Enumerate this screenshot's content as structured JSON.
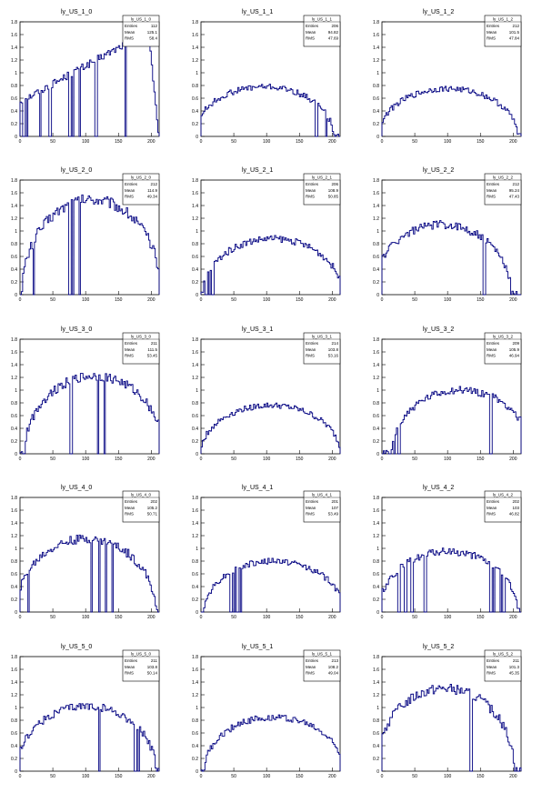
{
  "figure": {
    "colors": {
      "line": "#000080",
      "frame": "#000000",
      "background": "#ffffff"
    }
  },
  "stats_labels": {
    "entries": "Entries",
    "mean": "Mean",
    "rms": "RMS"
  },
  "chart_data": [
    {
      "type": "histogram",
      "title": "ly_US_1_0",
      "stats": {
        "name": "ly_US_1_0",
        "entries": "112",
        "mean": "125.1",
        "rms": "58.4"
      },
      "xlim": [
        0,
        212
      ],
      "ylim": [
        0,
        1.8
      ],
      "xticks": [
        0,
        50,
        100,
        150,
        200
      ],
      "yticks": [
        0,
        0.2,
        0.4,
        0.6,
        0.8,
        1,
        1.2,
        1.4,
        1.6,
        1.8
      ],
      "gaps": [
        5,
        10,
        30,
        45,
        75,
        80,
        90,
        115,
        160
      ],
      "shape": {
        "type": "rise",
        "a": 0.55,
        "b": 1.65,
        "x0": 195
      },
      "y": []
    },
    {
      "type": "histogram",
      "title": "ly_US_1_1",
      "stats": {
        "name": "ly_US_1_1",
        "entries": "206",
        "mean": "94.82",
        "rms": "47.69"
      },
      "xlim": [
        0,
        212
      ],
      "ylim": [
        0,
        1.8
      ],
      "xticks": [
        0,
        50,
        100,
        150,
        200
      ],
      "yticks": [
        0,
        0.2,
        0.4,
        0.6,
        0.8,
        1,
        1.2,
        1.4,
        1.6,
        1.8
      ],
      "gaps": [
        175,
        190
      ],
      "shape": {
        "type": "dome",
        "h": 0.78,
        "c": 95
      },
      "y": []
    },
    {
      "type": "histogram",
      "title": "ly_US_1_2",
      "stats": {
        "name": "ly_US_1_2",
        "entries": "212",
        "mean": "101.5",
        "rms": "47.84"
      },
      "xlim": [
        0,
        212
      ],
      "ylim": [
        0,
        1.8
      ],
      "xticks": [
        0,
        50,
        100,
        150,
        200
      ],
      "yticks": [
        0,
        0.2,
        0.4,
        0.6,
        0.8,
        1,
        1.2,
        1.4,
        1.6,
        1.8
      ],
      "gaps": [],
      "shape": {
        "type": "dome",
        "h": 0.75,
        "c": 100
      },
      "y": []
    },
    {
      "type": "histogram",
      "title": "ly_US_2_0",
      "stats": {
        "name": "ly_US_2_0",
        "entries": "212",
        "mean": "114.9",
        "rms": "49.34"
      },
      "xlim": [
        0,
        212
      ],
      "ylim": [
        0,
        1.8
      ],
      "xticks": [
        0,
        50,
        100,
        150,
        200
      ],
      "yticks": [
        0,
        0.2,
        0.4,
        0.6,
        0.8,
        1,
        1.2,
        1.4,
        1.6,
        1.8
      ],
      "gaps": [
        20,
        75,
        80,
        90
      ],
      "shape": {
        "type": "dome",
        "h": 1.5,
        "c": 108
      },
      "y": []
    },
    {
      "type": "histogram",
      "title": "ly_US_2_1",
      "stats": {
        "name": "ly_US_2_1",
        "entries": "206",
        "mean": "108.9",
        "rms": "50.85"
      },
      "xlim": [
        0,
        212
      ],
      "ylim": [
        0,
        1.8
      ],
      "xticks": [
        0,
        50,
        100,
        150,
        200
      ],
      "yticks": [
        0,
        0.2,
        0.4,
        0.6,
        0.8,
        1,
        1.2,
        1.4,
        1.6,
        1.8
      ],
      "gaps": [
        7,
        12,
        17
      ],
      "shape": {
        "type": "dome",
        "h": 0.88,
        "c": 108
      },
      "y": []
    },
    {
      "type": "histogram",
      "title": "ly_US_2_2",
      "stats": {
        "name": "ly_US_2_2",
        "entries": "212",
        "mean": "95.24",
        "rms": "47.43"
      },
      "xlim": [
        0,
        212
      ],
      "ylim": [
        0,
        1.8
      ],
      "xticks": [
        0,
        50,
        100,
        150,
        200
      ],
      "yticks": [
        0,
        0.2,
        0.4,
        0.6,
        0.8,
        1,
        1.2,
        1.4,
        1.6,
        1.8
      ],
      "gaps": [
        155
      ],
      "shape": {
        "type": "dome",
        "h": 1.1,
        "c": 90
      },
      "y": []
    },
    {
      "type": "histogram",
      "title": "ly_US_3_0",
      "stats": {
        "name": "ly_US_3_0",
        "entries": "211",
        "mean": "111.5",
        "rms": "53.45"
      },
      "xlim": [
        0,
        212
      ],
      "ylim": [
        0,
        1.8
      ],
      "xticks": [
        0,
        50,
        100,
        150,
        200
      ],
      "yticks": [
        0,
        0.2,
        0.4,
        0.6,
        0.8,
        1,
        1.2,
        1.4,
        1.6,
        1.8
      ],
      "gaps": [
        77,
        118,
        128
      ],
      "shape": {
        "type": "dome",
        "h": 1.22,
        "c": 112
      },
      "y": []
    },
    {
      "type": "histogram",
      "title": "ly_US_3_1",
      "stats": {
        "name": "ly_US_3_1",
        "entries": "214",
        "mean": "103.8",
        "rms": "53.16"
      },
      "xlim": [
        0,
        212
      ],
      "ylim": [
        0,
        1.8
      ],
      "xticks": [
        0,
        50,
        100,
        150,
        200
      ],
      "yticks": [
        0,
        0.2,
        0.4,
        0.6,
        0.8,
        1,
        1.2,
        1.4,
        1.6,
        1.8
      ],
      "gaps": [],
      "shape": {
        "type": "dome",
        "h": 0.76,
        "c": 105
      },
      "y": []
    },
    {
      "type": "histogram",
      "title": "ly_US_3_2",
      "stats": {
        "name": "ly_US_3_2",
        "entries": "209",
        "mean": "105.9",
        "rms": "46.94"
      },
      "xlim": [
        0,
        212
      ],
      "ylim": [
        0,
        1.8
      ],
      "xticks": [
        0,
        50,
        100,
        150,
        200
      ],
      "yticks": [
        0,
        0.2,
        0.4,
        0.6,
        0.8,
        1,
        1.2,
        1.4,
        1.6,
        1.8
      ],
      "gaps": [
        12,
        18,
        25,
        165
      ],
      "shape": {
        "type": "dome",
        "h": 1.0,
        "c": 120
      },
      "y": []
    },
    {
      "type": "histogram",
      "title": "ly_US_4_0",
      "stats": {
        "name": "ly_US_4_0",
        "entries": "202",
        "mean": "105.2",
        "rms": "50.71"
      },
      "xlim": [
        0,
        212
      ],
      "ylim": [
        0,
        1.8
      ],
      "xticks": [
        0,
        50,
        100,
        150,
        200
      ],
      "yticks": [
        0,
        0.2,
        0.4,
        0.6,
        0.8,
        1,
        1.2,
        1.4,
        1.6,
        1.8
      ],
      "gaps": [
        12,
        108,
        120,
        130,
        140
      ],
      "shape": {
        "type": "dome",
        "h": 1.15,
        "c": 100
      },
      "y": []
    },
    {
      "type": "histogram",
      "title": "ly_US_4_1",
      "stats": {
        "name": "ly_US_4_1",
        "entries": "201",
        "mean": "107",
        "rms": "53.49"
      },
      "xlim": [
        0,
        212
      ],
      "ylim": [
        0,
        1.8
      ],
      "xticks": [
        0,
        50,
        100,
        150,
        200
      ],
      "yticks": [
        0,
        0.2,
        0.4,
        0.6,
        0.8,
        1,
        1.2,
        1.4,
        1.6,
        1.8
      ],
      "gaps": [
        45,
        50,
        55,
        60
      ],
      "shape": {
        "type": "dome",
        "h": 0.8,
        "c": 110
      },
      "y": []
    },
    {
      "type": "histogram",
      "title": "ly_US_4_2",
      "stats": {
        "name": "ly_US_4_2",
        "entries": "202",
        "mean": "103",
        "rms": "46.82"
      },
      "xlim": [
        0,
        212
      ],
      "ylim": [
        0,
        1.8
      ],
      "xticks": [
        0,
        50,
        100,
        150,
        200
      ],
      "yticks": [
        0,
        0.2,
        0.4,
        0.6,
        0.8,
        1,
        1.2,
        1.4,
        1.6,
        1.8
      ],
      "gaps": [
        25,
        35,
        45,
        65,
        165,
        170,
        180,
        185
      ],
      "shape": {
        "type": "dome",
        "h": 0.95,
        "c": 100
      },
      "y": []
    },
    {
      "type": "histogram",
      "title": "ly_US_5_0",
      "stats": {
        "name": "ly_US_5_0",
        "entries": "211",
        "mean": "103.8",
        "rms": "50.14"
      },
      "xlim": [
        0,
        212
      ],
      "ylim": [
        0,
        1.8
      ],
      "xticks": [
        0,
        50,
        100,
        150,
        200
      ],
      "yticks": [
        0,
        0.2,
        0.4,
        0.6,
        0.8,
        1,
        1.2,
        1.4,
        1.6,
        1.8
      ],
      "gaps": [
        120,
        175,
        180
      ],
      "shape": {
        "type": "dome",
        "h": 1.02,
        "c": 100
      },
      "y": []
    },
    {
      "type": "histogram",
      "title": "ly_US_5_1",
      "stats": {
        "name": "ly_US_5_1",
        "entries": "213",
        "mean": "108.2",
        "rms": "49.04"
      },
      "xlim": [
        0,
        212
      ],
      "ylim": [
        0,
        1.8
      ],
      "xticks": [
        0,
        50,
        100,
        150,
        200
      ],
      "yticks": [
        0,
        0.2,
        0.4,
        0.6,
        0.8,
        1,
        1.2,
        1.4,
        1.6,
        1.8
      ],
      "gaps": [],
      "shape": {
        "type": "dome",
        "h": 0.85,
        "c": 110
      },
      "y": []
    },
    {
      "type": "histogram",
      "title": "ly_US_5_2",
      "stats": {
        "name": "ly_US_5_2",
        "entries": "211",
        "mean": "101.3",
        "rms": "45.35"
      },
      "xlim": [
        0,
        212
      ],
      "ylim": [
        0,
        1.8
      ],
      "xticks": [
        0,
        50,
        100,
        150,
        200
      ],
      "yticks": [
        0,
        0.2,
        0.4,
        0.6,
        0.8,
        1,
        1.2,
        1.4,
        1.6,
        1.8
      ],
      "gaps": [
        135
      ],
      "shape": {
        "type": "dome",
        "h": 1.3,
        "c": 95
      },
      "y": []
    }
  ]
}
